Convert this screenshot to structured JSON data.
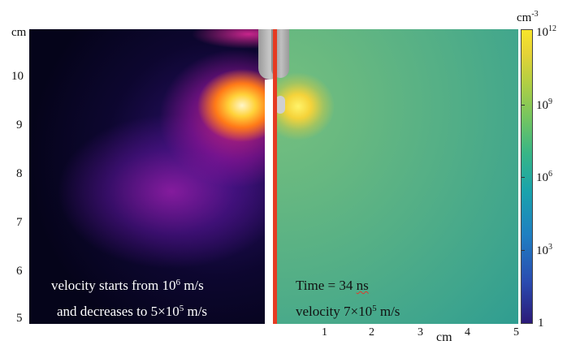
{
  "left_axis": {
    "unit": "cm",
    "ticks": [
      "10",
      "9",
      "8",
      "7",
      "6",
      "5"
    ]
  },
  "right_axis": {
    "unit": "cm",
    "ticks": [
      "1",
      "2",
      "3",
      "4",
      "5"
    ]
  },
  "colorbar": {
    "unit": "cm",
    "unit_exp": "-3",
    "labels": [
      {
        "base": "10",
        "exp": "12"
      },
      {
        "base": "10",
        "exp": "9"
      },
      {
        "base": "10",
        "exp": "6"
      },
      {
        "base": "10",
        "exp": "3"
      },
      {
        "base": "1",
        "exp": ""
      }
    ],
    "scale": "log",
    "colors": [
      "#2b1a78",
      "#1f7fc2",
      "#38b686",
      "#b2cf43",
      "#f8e52a"
    ]
  },
  "left_caption": {
    "line1_pre": "velocity starts from 10",
    "line1_exp": "6",
    "line1_post": " m/s",
    "line2_pre": "and decreases to 5×10",
    "line2_exp": "5",
    "line2_post": " m/s"
  },
  "right_caption": {
    "line1_pre": "Time = 34 ",
    "line1_unit": "ns",
    "line2_pre": "velocity 7×10",
    "line2_exp": "5",
    "line2_post": " m/s"
  },
  "divider_color": "#e63b22"
}
